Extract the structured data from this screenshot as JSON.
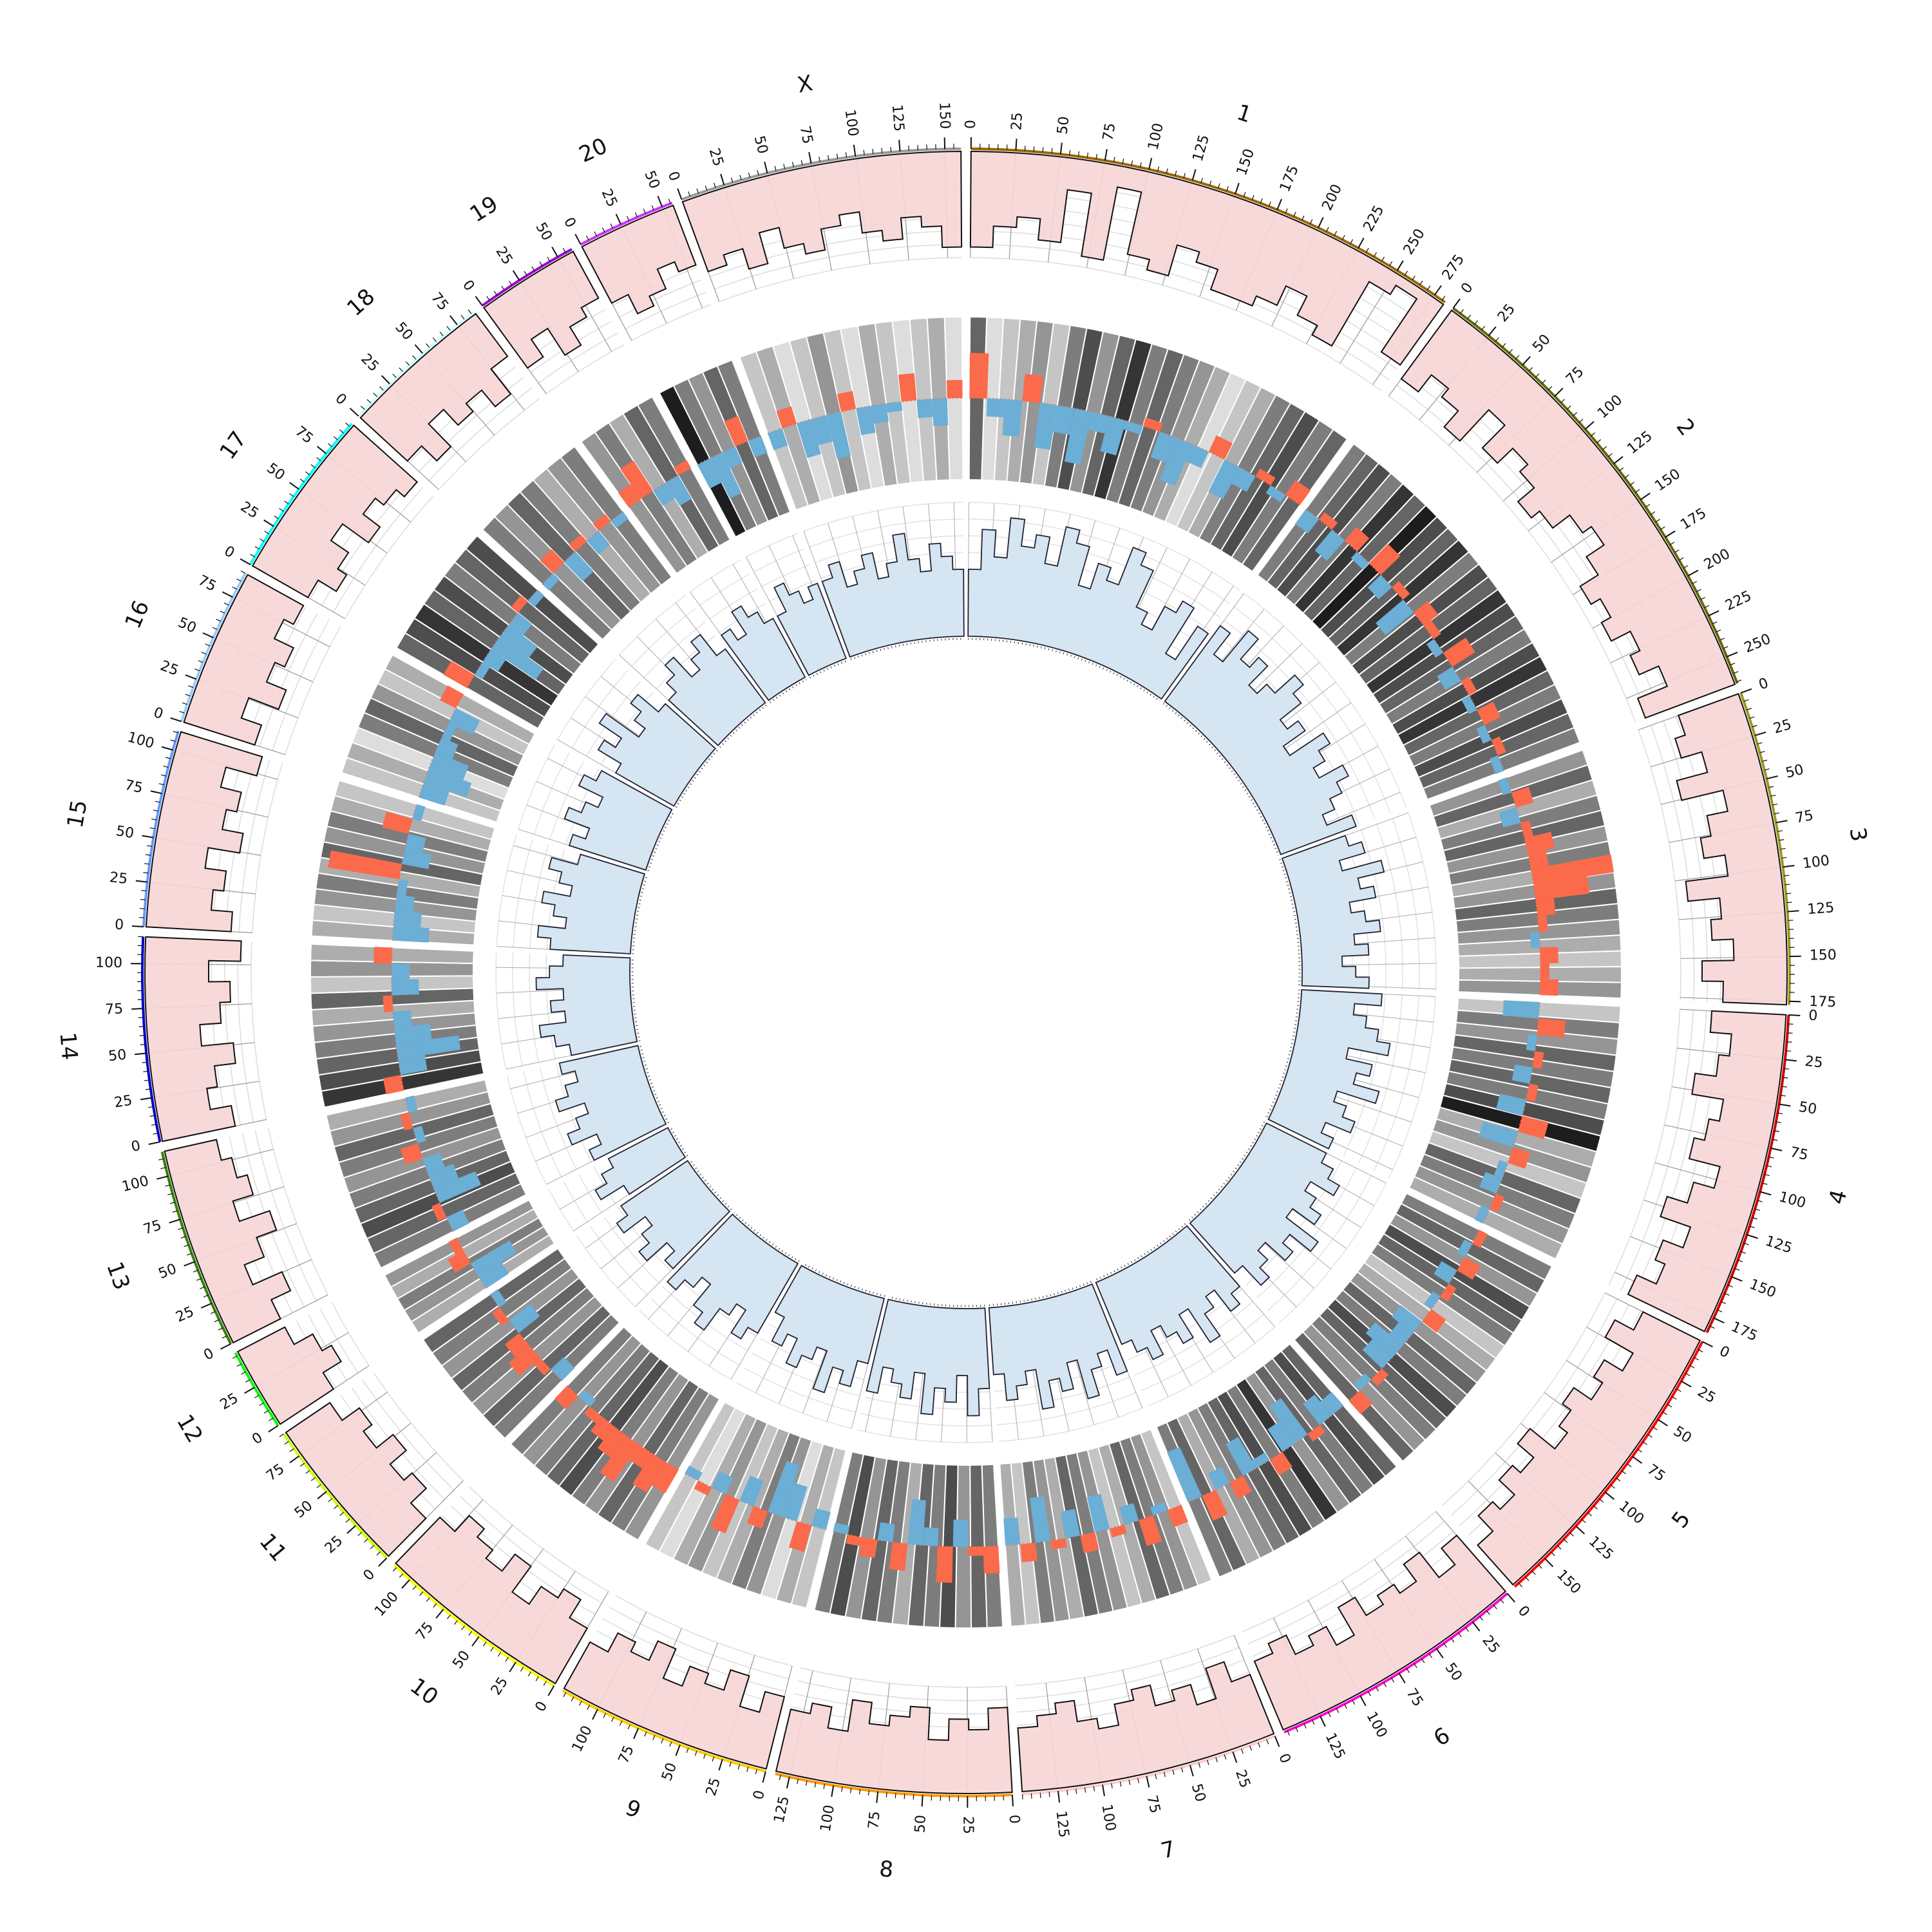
{
  "chart_data": {
    "type": "circos",
    "title": "",
    "tick_label_step": 25,
    "minor_tick_step": 5,
    "units": "Mb",
    "tracks": [
      "outer histogram (pink)",
      "heatmap (grayscale)",
      "signed bars (red positive / blue negative)",
      "inner histogram (light blue)"
    ],
    "colors": {
      "outer_fill": "#f7d5d5",
      "inner_fill": "#d5e5f1",
      "positive": "#fb6a4a",
      "negative": "#6baed6"
    },
    "chromosomes": [
      {
        "name": "1",
        "size": 282,
        "color": "#996600",
        "outer": [
          9,
          7,
          6,
          8,
          3,
          9,
          2,
          8,
          9,
          6,
          7,
          9,
          9,
          8,
          6,
          8,
          9,
          2,
          1,
          7
        ],
        "inner": [
          5,
          8,
          6,
          9,
          7,
          8,
          6,
          9,
          8,
          5,
          7,
          6,
          9,
          8,
          5,
          4,
          6,
          7,
          3,
          6
        ],
        "heat": [
          6,
          1,
          2,
          3,
          4,
          2,
          5,
          7,
          4,
          6,
          8,
          5,
          6,
          5,
          4,
          3,
          1,
          2,
          3,
          5,
          6,
          7,
          5,
          6
        ],
        "bars": [
          5,
          -2,
          -4,
          3,
          -5,
          -3,
          -6,
          -2,
          -4,
          -1,
          1,
          -3,
          -5,
          -2,
          2,
          -4,
          -2,
          1,
          -1,
          2
        ]
      },
      {
        "name": "2",
        "size": 266,
        "color": "#666600",
        "outer": [
          8,
          6,
          7,
          9,
          5,
          8,
          6,
          7,
          9,
          8,
          6,
          5,
          7,
          9,
          8,
          9,
          7,
          8,
          6,
          9
        ],
        "inner": [
          7,
          5,
          8,
          6,
          7,
          5,
          6,
          8,
          7,
          5,
          6,
          4,
          7,
          6,
          5,
          7,
          6,
          5,
          4,
          6
        ],
        "heat": [
          5,
          6,
          7,
          5,
          8,
          6,
          9,
          7,
          6,
          8,
          5,
          7,
          6,
          8,
          7,
          6,
          5,
          7,
          8,
          6,
          5,
          7,
          6,
          5
        ],
        "bars": [
          -2,
          1,
          -3,
          2,
          -1,
          3,
          -2,
          1,
          -4,
          2,
          1,
          -1,
          3,
          -2,
          1,
          -1,
          2,
          -1,
          1,
          -1
        ]
      },
      {
        "name": "3",
        "size": 177,
        "color": "#99991e",
        "outer": [
          6,
          7,
          5,
          8,
          4,
          6,
          7,
          5,
          9,
          6,
          7,
          5,
          8,
          6
        ],
        "inner": [
          5,
          6,
          4,
          7,
          5,
          6,
          4,
          5,
          6,
          4,
          5,
          3,
          4,
          5
        ],
        "heat": [
          4,
          6,
          3,
          5,
          6,
          4,
          5,
          3,
          4,
          6,
          5,
          4,
          3,
          2,
          3,
          4
        ],
        "bars": [
          -1,
          2,
          -2,
          1,
          3,
          2,
          9,
          6,
          2,
          1,
          -1,
          2,
          1,
          2
        ]
      },
      {
        "name": "4",
        "size": 184,
        "color": "#cc0000",
        "outer": [
          7,
          5,
          6,
          8,
          5,
          6,
          7,
          4,
          6,
          8,
          5,
          7,
          6,
          8
        ],
        "inner": [
          6,
          4,
          5,
          6,
          7,
          4,
          6,
          5,
          7,
          4,
          5,
          6,
          4,
          5
        ],
        "heat": [
          2,
          5,
          4,
          6,
          5,
          6,
          5,
          7,
          9,
          3,
          4,
          2,
          6,
          5,
          4,
          3
        ],
        "bars": [
          -4,
          3,
          -1,
          1,
          -2,
          1,
          -3,
          3,
          -4,
          2,
          -1,
          -2,
          1,
          -1
        ]
      },
      {
        "name": "5",
        "size": 173,
        "color": "#ff0000",
        "outer": [
          6,
          8,
          5,
          7,
          6,
          8,
          7,
          6,
          9,
          7,
          8,
          6,
          7,
          5
        ],
        "inner": [
          5,
          6,
          7,
          5,
          6,
          7,
          5,
          8,
          6,
          7,
          5,
          6,
          7,
          5
        ],
        "heat": [
          5,
          6,
          4,
          7,
          6,
          5,
          2,
          3,
          4,
          6,
          5,
          7,
          6,
          5,
          4,
          6
        ],
        "bars": [
          1,
          -1,
          2,
          -2,
          1,
          -1,
          2,
          -3,
          -2,
          -4,
          -3,
          1,
          -1,
          2
        ]
      },
      {
        "name": "6",
        "size": 147,
        "color": "#ff00cc",
        "outer": [
          7,
          5,
          8,
          6,
          7,
          6,
          8,
          5,
          7,
          6,
          8,
          7
        ],
        "inner": [
          6,
          7,
          5,
          6,
          8,
          5,
          7,
          6,
          5,
          7,
          6,
          5
        ],
        "heat": [
          6,
          7,
          5,
          6,
          4,
          8,
          5,
          7,
          6,
          5,
          4,
          3,
          6,
          5
        ],
        "bars": [
          -2,
          -3,
          1,
          -5,
          -3,
          2,
          -1,
          -4,
          2,
          -2,
          3,
          -6
        ]
      },
      {
        "name": "7",
        "size": 145,
        "color": "#ffcccc",
        "outer": [
          6,
          8,
          5,
          7,
          6,
          8,
          7,
          5,
          6,
          8,
          7,
          6
        ],
        "inner": [
          7,
          5,
          6,
          8,
          5,
          7,
          6,
          8,
          5,
          6,
          7,
          5
        ],
        "heat": [
          2,
          4,
          5,
          6,
          3,
          2,
          4,
          5,
          6,
          3,
          4,
          5,
          2,
          3
        ],
        "bars": [
          2,
          -1,
          3,
          -2,
          1,
          -4,
          2,
          -3,
          1,
          -5,
          2,
          -3
        ]
      },
      {
        "name": "8",
        "size": 133,
        "color": "#ff9900",
        "outer": [
          8,
          6,
          7,
          5,
          8,
          7,
          6,
          8,
          5,
          7,
          6
        ],
        "inner": [
          6,
          8,
          5,
          7,
          6,
          8,
          5,
          7,
          6,
          5,
          7
        ],
        "heat": [
          5,
          6,
          4,
          7,
          5,
          6,
          3,
          5,
          6,
          4,
          7,
          5
        ],
        "bars": [
          3,
          1,
          -3,
          4,
          -2,
          -5,
          3,
          -2,
          2,
          1,
          -1
        ]
      },
      {
        "name": "9",
        "size": 122,
        "color": "#ffcc00",
        "outer": [
          7,
          5,
          8,
          6,
          7,
          5,
          8,
          6,
          7,
          5
        ],
        "inner": [
          5,
          7,
          6,
          8,
          5,
          6,
          7,
          5,
          6,
          4
        ],
        "heat": [
          2,
          3,
          1,
          4,
          5,
          3,
          2,
          4,
          3,
          1,
          2
        ],
        "bars": [
          -2,
          3,
          -4,
          -6,
          2,
          -3,
          4,
          -2,
          1,
          -1
        ]
      },
      {
        "name": "10",
        "size": 112,
        "color": "#ffff00",
        "outer": [
          6,
          8,
          7,
          5,
          8,
          6,
          7,
          8,
          6
        ],
        "inner": [
          6,
          7,
          5,
          6,
          8,
          7,
          5,
          6,
          7
        ],
        "heat": [
          4,
          5,
          6,
          4,
          5,
          7,
          6,
          5,
          4,
          5
        ],
        "bars": [
          3,
          4,
          2,
          5,
          3,
          2,
          1,
          -1,
          2
        ]
      },
      {
        "name": "11",
        "size": 90,
        "color": "#ccff00",
        "outer": [
          5,
          7,
          6,
          8,
          6,
          7,
          5
        ],
        "inner": [
          6,
          5,
          7,
          6,
          5,
          7,
          6
        ],
        "heat": [
          5,
          6,
          4,
          5,
          6,
          4,
          5,
          6
        ],
        "bars": [
          -2,
          1,
          3,
          2,
          -3,
          1,
          -1
        ]
      },
      {
        "name": "12",
        "size": 47,
        "color": "#00ff00",
        "outer": [
          6,
          8,
          7,
          5
        ],
        "inner": [
          5,
          7,
          6,
          5
        ],
        "heat": [
          3,
          4,
          5,
          3,
          4
        ],
        "bars": [
          -3,
          -5,
          2,
          1
        ]
      },
      {
        "name": "13",
        "size": 114,
        "color": "#358000",
        "outer": [
          5,
          7,
          4,
          6,
          8,
          5,
          7,
          6,
          5
        ],
        "inner": [
          6,
          5,
          7,
          6,
          5,
          7,
          6,
          5,
          6
        ],
        "heat": [
          5,
          6,
          7,
          6,
          5,
          4,
          5,
          6,
          4,
          3
        ],
        "bars": [
          -2,
          1,
          -5,
          -3,
          -2,
          2,
          -1,
          1,
          -1
        ]
      },
      {
        "name": "14",
        "size": 115,
        "color": "#0000cc",
        "outer": [
          7,
          5,
          6,
          8,
          5,
          7,
          8,
          6,
          9
        ],
        "inner": [
          5,
          6,
          7,
          5,
          6,
          5,
          7,
          6,
          5
        ],
        "heat": [
          8,
          7,
          6,
          5,
          4,
          3,
          6,
          2,
          4,
          3
        ],
        "bars": [
          2,
          -3,
          -7,
          -4,
          -2,
          1,
          -3,
          -2,
          2
        ]
      },
      {
        "name": "15",
        "size": 111,
        "color": "#6699ff",
        "outer": [
          8,
          6,
          7,
          5,
          8,
          6,
          7,
          5,
          8
        ],
        "inner": [
          6,
          7,
          5,
          6,
          7,
          5,
          6,
          7,
          5
        ],
        "heat": [
          3,
          2,
          4,
          5,
          3,
          6,
          4,
          5,
          3,
          2
        ],
        "bars": [
          -4,
          -3,
          -2,
          -1,
          8,
          -3,
          -2,
          3,
          -1
        ]
      },
      {
        "name": "16",
        "size": 90,
        "color": "#99ccff",
        "outer": [
          7,
          5,
          8,
          6,
          7,
          5,
          6
        ],
        "inner": [
          6,
          5,
          7,
          6,
          5,
          7,
          6
        ],
        "heat": [
          2,
          3,
          1,
          5,
          6,
          4,
          2,
          3
        ],
        "bars": [
          -3,
          -5,
          -4,
          -2,
          -1,
          -3,
          2
        ]
      },
      {
        "name": "17",
        "size": 97,
        "color": "#00ffff",
        "outer": [
          6,
          8,
          7,
          5,
          8,
          6,
          7,
          8
        ],
        "inner": [
          5,
          7,
          6,
          8,
          5,
          6,
          7,
          5
        ],
        "heat": [
          6,
          7,
          8,
          6,
          7,
          5,
          6,
          7
        ],
        "bars": [
          3,
          -1,
          -2,
          -6,
          -4,
          -2,
          1,
          -1
        ]
      },
      {
        "name": "18",
        "size": 87,
        "color": "#ccffff",
        "outer": [
          6,
          8,
          5,
          7,
          6,
          8,
          5
        ],
        "inner": [
          5,
          6,
          7,
          5,
          6,
          7,
          5
        ],
        "heat": [
          5,
          4,
          6,
          5,
          3,
          4,
          5
        ],
        "bars": [
          -1,
          2,
          -3,
          1,
          -2,
          1,
          -1
        ]
      },
      {
        "name": "19",
        "size": 59,
        "color": "#9900cc",
        "outer": [
          7,
          5,
          8,
          6,
          5
        ],
        "inner": [
          6,
          5,
          7,
          6,
          5
        ],
        "heat": [
          4,
          5,
          3,
          6,
          5
        ],
        "bars": [
          2,
          4,
          -2,
          -3,
          1
        ]
      },
      {
        "name": "20",
        "size": 56,
        "color": "#cc33ff",
        "outer": [
          6,
          8,
          7,
          5,
          6
        ],
        "inner": [
          5,
          7,
          6,
          5,
          6
        ],
        "heat": [
          9,
          5,
          4,
          6,
          5
        ],
        "bars": [
          -3,
          -5,
          -2,
          3,
          -2
        ]
      },
      {
        "name": "X",
        "size": 159,
        "color": "#999999",
        "outer": [
          7,
          6,
          8,
          5,
          7,
          8,
          6,
          5,
          7,
          8,
          6,
          7,
          9
        ],
        "inner": [
          6,
          7,
          5,
          6,
          7,
          5,
          6,
          8,
          6,
          5,
          7,
          6,
          5
        ],
        "heat": [
          2,
          3,
          1,
          2,
          4,
          2,
          1,
          3,
          2,
          1,
          2,
          3,
          1
        ],
        "bars": [
          -2,
          2,
          -4,
          -3,
          -5,
          2,
          -3,
          -2,
          -1,
          3,
          -2,
          -3,
          2
        ]
      }
    ]
  }
}
